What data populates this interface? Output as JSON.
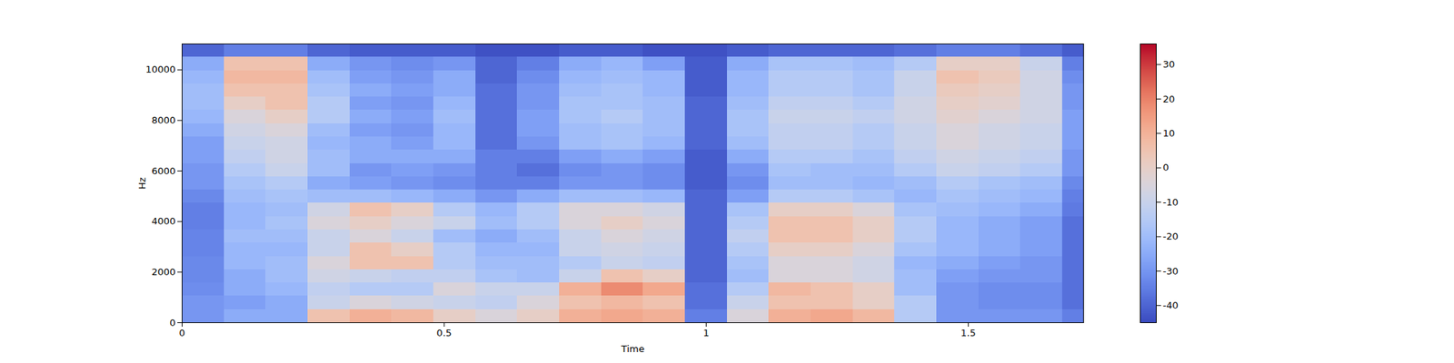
{
  "chart_data": {
    "type": "heatmap",
    "xlabel": "Time",
    "ylabel": "Hz",
    "xlim": [
      0,
      1.72
    ],
    "xticks": [
      0,
      0.5,
      1,
      1.5
    ],
    "ylim": [
      0,
      11025
    ],
    "yticks": [
      0,
      2000,
      4000,
      6000,
      8000,
      10000
    ],
    "x_edges": [
      0,
      0.08,
      0.16,
      0.24,
      0.32,
      0.4,
      0.48,
      0.56,
      0.64,
      0.72,
      0.8,
      0.88,
      0.96,
      1.04,
      1.12,
      1.2,
      1.28,
      1.36,
      1.44,
      1.52,
      1.6,
      1.68,
      1.72
    ],
    "y_edges": [
      0,
      525,
      1050,
      1575,
      2100,
      2625,
      3150,
      3675,
      4200,
      4725,
      5250,
      5775,
      6300,
      6825,
      7350,
      7875,
      8400,
      8925,
      9450,
      9975,
      10500,
      11025
    ],
    "cells": [
      [
        -30,
        -30,
        -32,
        -33,
        -33,
        -34,
        -34,
        -35,
        -35,
        -33,
        -30,
        -30,
        -28,
        -28,
        -25,
        -22,
        -20,
        -20,
        -22,
        -25,
        -40
      ],
      [
        -25,
        -28,
        -25,
        -25,
        -22,
        -22,
        -20,
        -22,
        -22,
        -20,
        -18,
        -15,
        -12,
        -10,
        -8,
        -5,
        0,
        5,
        8,
        5,
        -35
      ],
      [
        -25,
        -25,
        -22,
        -20,
        -20,
        -22,
        -20,
        -18,
        -20,
        -18,
        -15,
        -10,
        -8,
        -8,
        -5,
        0,
        5,
        5,
        8,
        5,
        -35
      ],
      [
        5,
        -10,
        -12,
        -8,
        -5,
        -10,
        -10,
        -5,
        -8,
        -20,
        -25,
        -20,
        -20,
        -22,
        -20,
        -15,
        -15,
        -18,
        -20,
        -25,
        -40
      ],
      [
        10,
        -5,
        -15,
        -10,
        5,
        5,
        -5,
        0,
        5,
        -20,
        -28,
        -30,
        -25,
        -25,
        -28,
        -25,
        -28,
        -25,
        -28,
        -30,
        -42
      ],
      [
        8,
        -8,
        -15,
        -12,
        5,
        0,
        -10,
        -5,
        0,
        -22,
        -30,
        -28,
        -25,
        -28,
        -30,
        -28,
        -30,
        -28,
        -30,
        -32,
        -42
      ],
      [
        0,
        -10,
        -5,
        -12,
        -15,
        -15,
        -20,
        -10,
        -15,
        -25,
        -32,
        -30,
        -25,
        -22,
        -22,
        -20,
        -22,
        -25,
        -25,
        -30,
        -42
      ],
      [
        -5,
        -12,
        -10,
        -18,
        -20,
        -22,
        -25,
        -20,
        -22,
        -30,
        -35,
        -35,
        -35,
        -38,
        -38,
        -38,
        -38,
        -38,
        -40,
        -40,
        -44
      ],
      [
        0,
        -5,
        -10,
        -20,
        -20,
        -22,
        -20,
        -15,
        -15,
        -25,
        -35,
        -38,
        -35,
        -30,
        -28,
        -28,
        -30,
        -30,
        -32,
        -35,
        -44
      ],
      [
        10,
        5,
        10,
        -10,
        -15,
        -10,
        -10,
        -5,
        -5,
        -20,
        -30,
        -32,
        -28,
        -20,
        -20,
        -18,
        -18,
        -20,
        -22,
        -25,
        -42
      ],
      [
        12,
        8,
        18,
        5,
        -10,
        -8,
        -5,
        0,
        -5,
        -20,
        -30,
        -30,
        -25,
        -18,
        -18,
        -15,
        -18,
        -18,
        -20,
        -22,
        -42
      ],
      [
        10,
        5,
        12,
        0,
        -12,
        -10,
        -8,
        -5,
        -8,
        -22,
        -32,
        -32,
        -28,
        -22,
        -20,
        -20,
        -20,
        -22,
        -22,
        -28,
        -44
      ],
      [
        -35,
        -38,
        -38,
        -40,
        -40,
        -40,
        -40,
        -40,
        -40,
        -40,
        -42,
        -42,
        -42,
        -40,
        -40,
        -40,
        -40,
        -42,
        -42,
        -42,
        -44
      ],
      [
        -5,
        -10,
        -15,
        -20,
        -18,
        -15,
        -12,
        -15,
        -18,
        -28,
        -32,
        -30,
        -25,
        -20,
        -18,
        -18,
        -20,
        -22,
        -22,
        -25,
        -42
      ],
      [
        10,
        5,
        8,
        -5,
        -5,
        0,
        5,
        5,
        0,
        -15,
        -20,
        -18,
        -15,
        -12,
        -12,
        -10,
        -12,
        -15,
        -15,
        -18,
        -40
      ],
      [
        12,
        5,
        5,
        -5,
        -5,
        0,
        5,
        5,
        0,
        -15,
        -20,
        -20,
        -15,
        -12,
        -12,
        -10,
        -12,
        -15,
        -15,
        -18,
        -40
      ],
      [
        8,
        0,
        0,
        -8,
        -8,
        -5,
        0,
        0,
        -5,
        -18,
        -22,
        -20,
        -18,
        -15,
        -15,
        -12,
        -15,
        -18,
        -18,
        -20,
        -40
      ],
      [
        -15,
        -15,
        -20,
        -20,
        -22,
        -18,
        -15,
        -15,
        -18,
        -22,
        -20,
        -15,
        -12,
        -10,
        -10,
        -8,
        -8,
        -10,
        -10,
        -15,
        -38
      ],
      [
        -30,
        -30,
        -30,
        -28,
        -25,
        -22,
        -22,
        -22,
        -20,
        -18,
        -15,
        -10,
        -8,
        -5,
        -5,
        -2,
        0,
        2,
        5,
        0,
        -35
      ],
      [
        -30,
        -32,
        -32,
        -30,
        -28,
        -25,
        -25,
        -25,
        -22,
        -20,
        -18,
        -12,
        -10,
        -8,
        -8,
        -5,
        -2,
        0,
        2,
        0,
        -35
      ],
      [
        -30,
        -32,
        -32,
        -30,
        -30,
        -28,
        -28,
        -28,
        -25,
        -22,
        -20,
        -15,
        -12,
        -10,
        -10,
        -8,
        -8,
        -8,
        -8,
        -10,
        -38
      ],
      [
        -35,
        -38,
        -38,
        -38,
        -38,
        -38,
        -38,
        -38,
        -36,
        -35,
        -33,
        -30,
        -30,
        -28,
        -28,
        -28,
        -30,
        -30,
        -32,
        -35,
        -42
      ]
    ],
    "colorbar": {
      "range": [
        -45,
        36
      ],
      "ticks": [
        -40,
        -30,
        -20,
        -10,
        0,
        10,
        20,
        30
      ]
    }
  }
}
